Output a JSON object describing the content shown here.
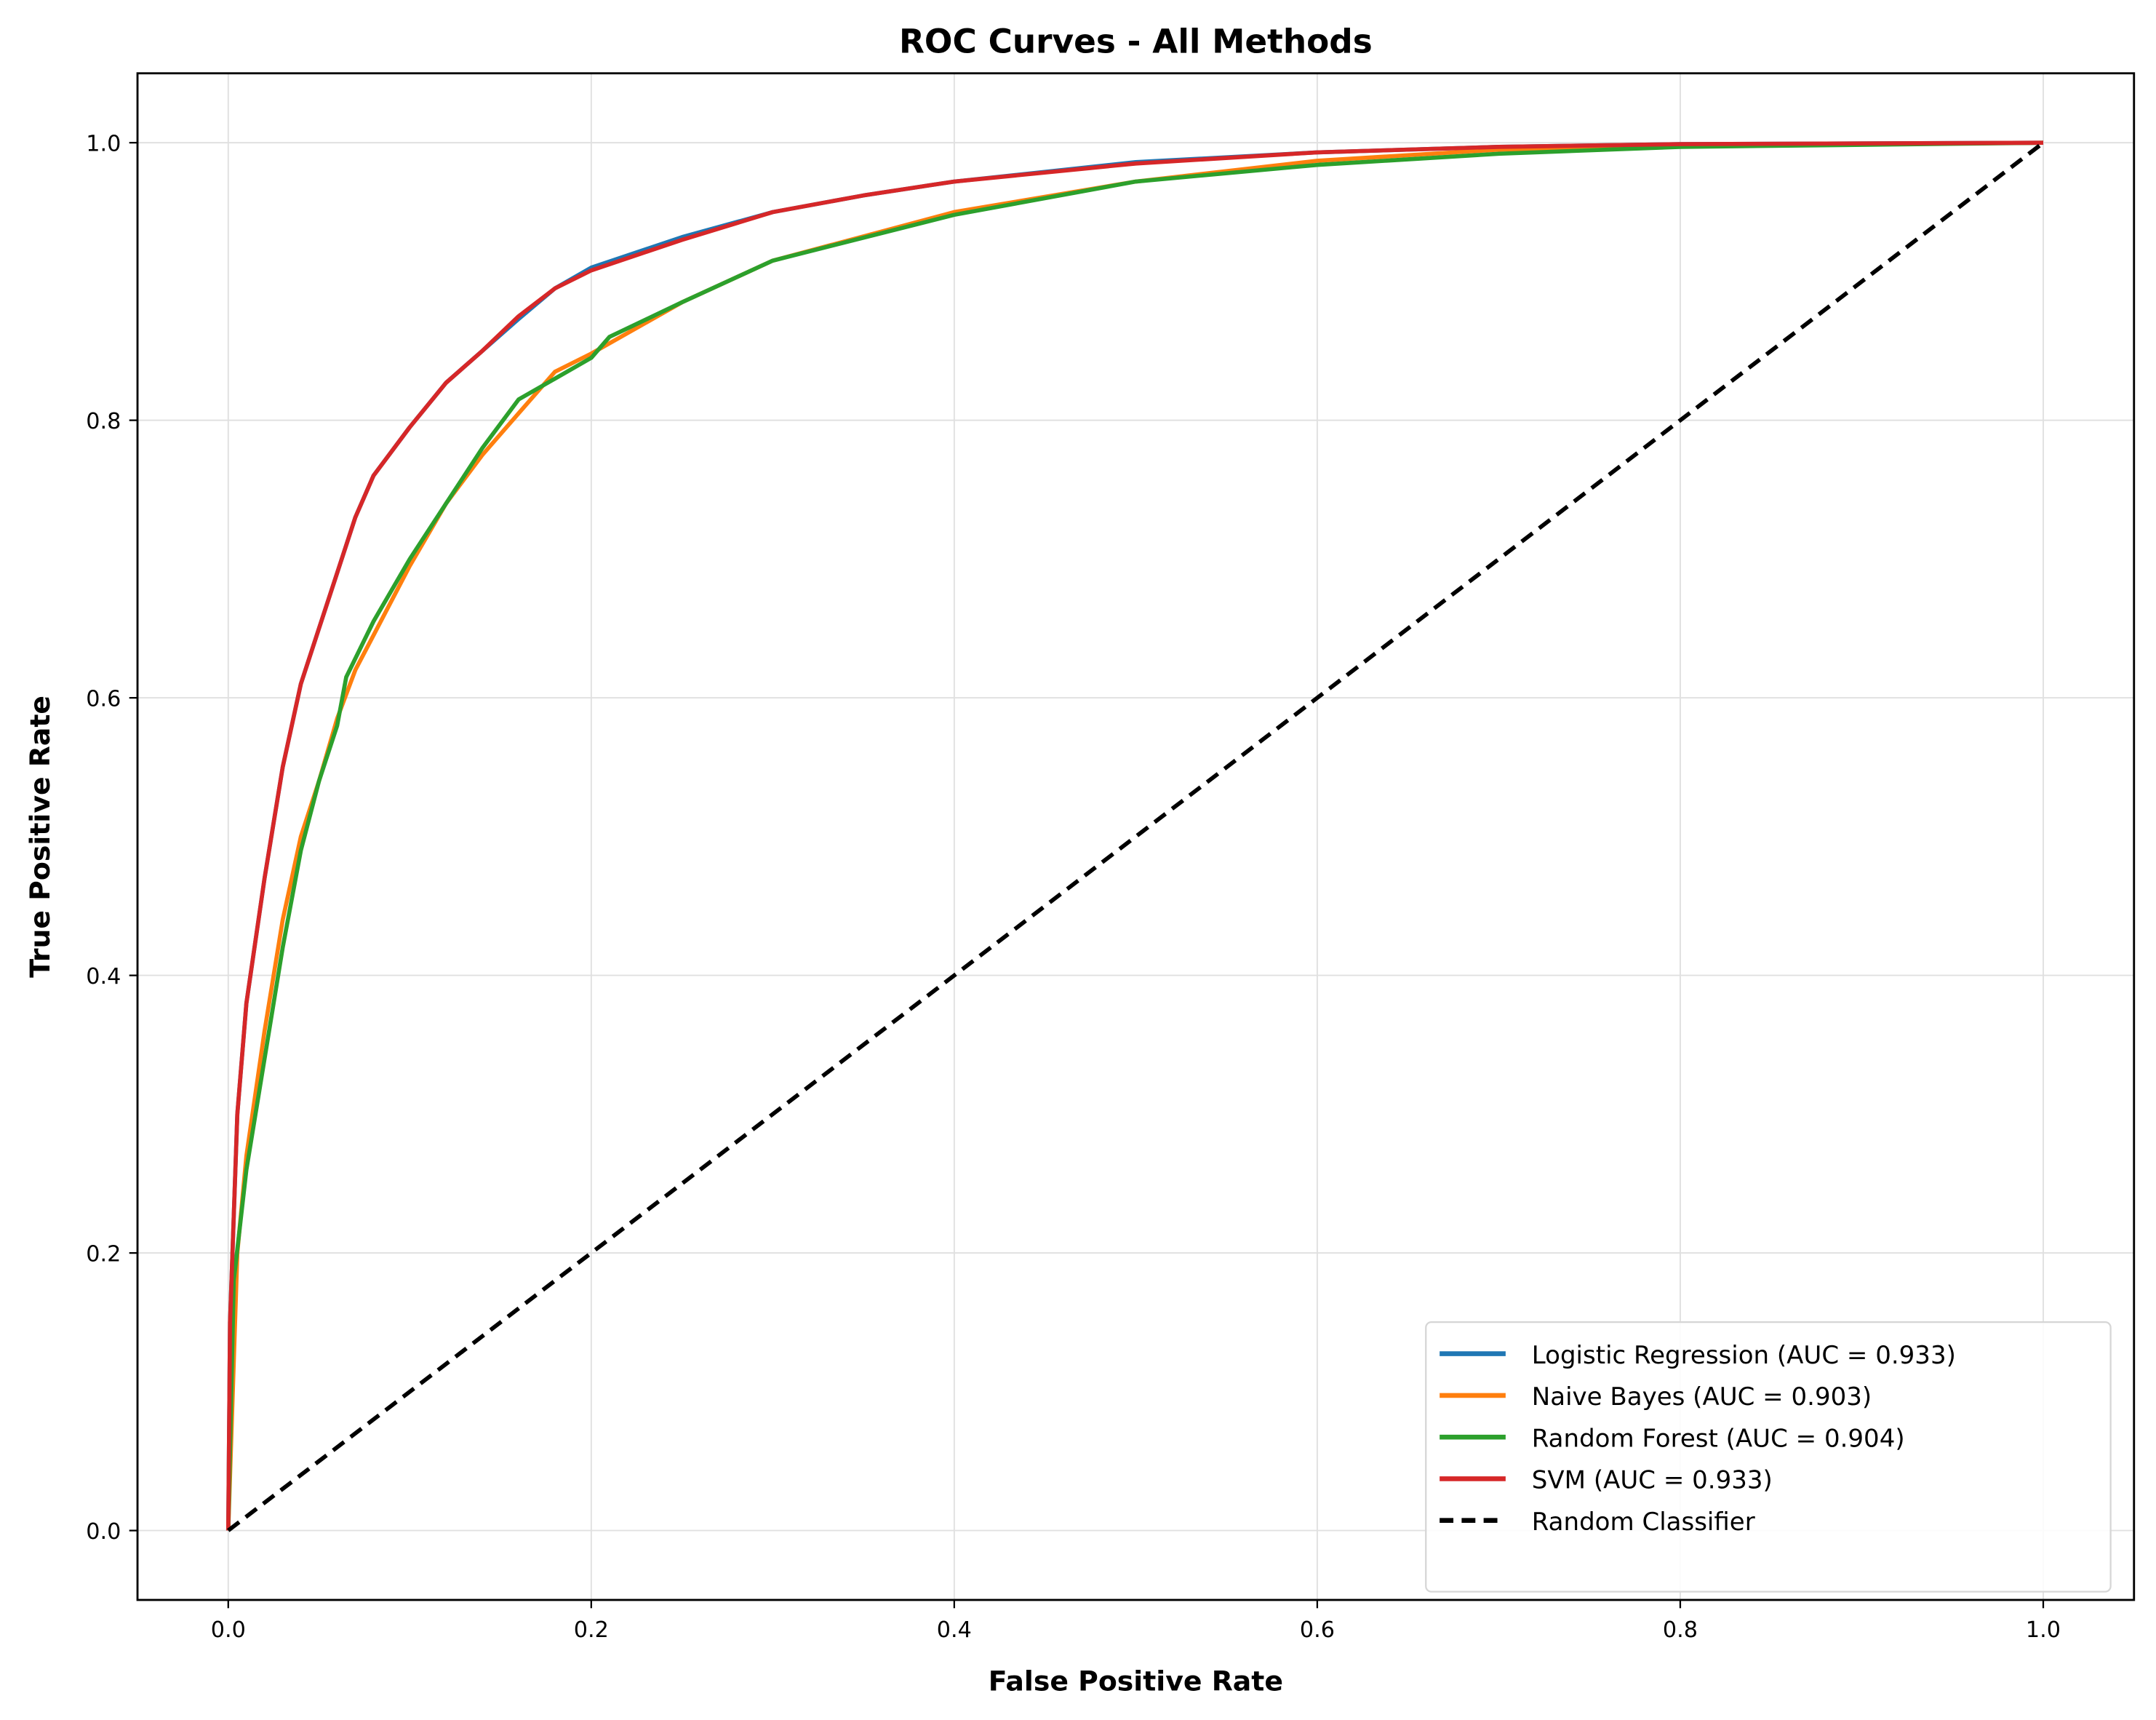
{
  "chart_data": {
    "type": "line",
    "title": "ROC Curves - All Methods",
    "xlabel": "False Positive Rate",
    "ylabel": "True Positive Rate",
    "xlim": [
      -0.05,
      1.05
    ],
    "ylim": [
      -0.05,
      1.05
    ],
    "xticks": [
      "0.0",
      "0.2",
      "0.4",
      "0.6",
      "0.8",
      "1.0"
    ],
    "yticks": [
      "0.0",
      "0.2",
      "0.4",
      "0.6",
      "0.8",
      "1.0"
    ],
    "grid": true,
    "legend_position": "lower-right",
    "series": [
      {
        "name": "Logistic Regression (AUC = 0.933)",
        "color": "#1f77b4",
        "style": "solid",
        "x": [
          0,
          0.001,
          0.005,
          0.01,
          0.02,
          0.03,
          0.04,
          0.05,
          0.06,
          0.07,
          0.08,
          0.1,
          0.12,
          0.14,
          0.16,
          0.18,
          0.2,
          0.25,
          0.3,
          0.35,
          0.4,
          0.5,
          0.6,
          0.7,
          0.8,
          1
        ],
        "y": [
          0,
          0.15,
          0.3,
          0.38,
          0.47,
          0.55,
          0.61,
          0.65,
          0.69,
          0.73,
          0.76,
          0.795,
          0.827,
          0.85,
          0.873,
          0.895,
          0.91,
          0.932,
          0.95,
          0.962,
          0.972,
          0.986,
          0.993,
          0.997,
          0.999,
          1
        ]
      },
      {
        "name": "Naive Bayes (AUC = 0.903)",
        "color": "#ff7f0e",
        "style": "solid",
        "x": [
          0,
          0.005,
          0.01,
          0.02,
          0.03,
          0.04,
          0.05,
          0.06,
          0.07,
          0.08,
          0.1,
          0.12,
          0.14,
          0.16,
          0.18,
          0.2,
          0.25,
          0.3,
          0.4,
          0.5,
          0.6,
          0.7,
          0.8,
          1
        ],
        "y": [
          0,
          0.2,
          0.27,
          0.36,
          0.44,
          0.5,
          0.54,
          0.585,
          0.62,
          0.645,
          0.695,
          0.74,
          0.775,
          0.805,
          0.835,
          0.848,
          0.885,
          0.915,
          0.95,
          0.972,
          0.987,
          0.995,
          0.998,
          1
        ]
      },
      {
        "name": "Random Forest (AUC = 0.904)",
        "color": "#2ca02c",
        "style": "solid",
        "x": [
          0,
          0.003,
          0.01,
          0.02,
          0.03,
          0.04,
          0.05,
          0.06,
          0.065,
          0.08,
          0.1,
          0.12,
          0.14,
          0.16,
          0.2,
          0.21,
          0.25,
          0.3,
          0.4,
          0.5,
          0.6,
          0.7,
          0.8,
          1
        ],
        "y": [
          0,
          0.18,
          0.26,
          0.34,
          0.42,
          0.49,
          0.54,
          0.58,
          0.615,
          0.655,
          0.7,
          0.74,
          0.78,
          0.815,
          0.845,
          0.86,
          0.885,
          0.915,
          0.948,
          0.972,
          0.984,
          0.992,
          0.997,
          1
        ]
      },
      {
        "name": "SVM (AUC = 0.933)",
        "color": "#d62728",
        "style": "solid",
        "x": [
          0,
          0.001,
          0.005,
          0.01,
          0.02,
          0.03,
          0.04,
          0.05,
          0.06,
          0.07,
          0.08,
          0.1,
          0.12,
          0.14,
          0.16,
          0.18,
          0.2,
          0.25,
          0.3,
          0.35,
          0.4,
          0.5,
          0.6,
          0.7,
          0.8,
          1
        ],
        "y": [
          0,
          0.15,
          0.3,
          0.38,
          0.47,
          0.55,
          0.61,
          0.65,
          0.69,
          0.73,
          0.76,
          0.795,
          0.827,
          0.85,
          0.875,
          0.895,
          0.908,
          0.93,
          0.95,
          0.962,
          0.972,
          0.985,
          0.993,
          0.997,
          0.999,
          1
        ]
      },
      {
        "name": "Random Classifier",
        "color": "#000000",
        "style": "dashed",
        "x": [
          0,
          1
        ],
        "y": [
          0,
          1
        ]
      }
    ]
  }
}
